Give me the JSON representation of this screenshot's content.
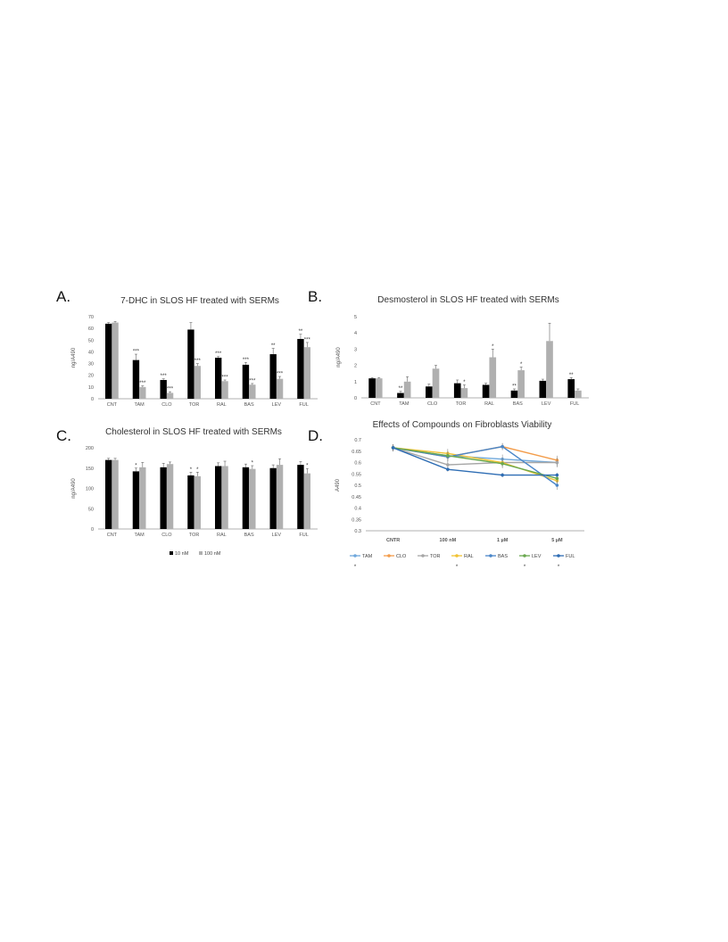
{
  "panels": [
    {
      "letter": "A."
    },
    {
      "letter": "B."
    },
    {
      "letter": "C."
    },
    {
      "letter": "D."
    }
  ],
  "chart_data": [
    {
      "type": "bar",
      "title": "7-DHC in SLOS HF treated with SERMs",
      "ylabel": "ng/A490",
      "ylim": [
        0,
        70
      ],
      "yticks": [
        0,
        10,
        20,
        30,
        40,
        50,
        60,
        70
      ],
      "categories": [
        "CNT",
        "TAM",
        "CLO",
        "TOR",
        "RAL",
        "BAS",
        "LEV",
        "FUL"
      ],
      "series": [
        {
          "name": "10 nM",
          "color": "#000000",
          "values": [
            64,
            33,
            16,
            59,
            35,
            29,
            38,
            51
          ],
          "errors": [
            1,
            5,
            1,
            6,
            1,
            2,
            5,
            4
          ],
          "stars": [
            "",
            "***",
            "***",
            "",
            "***",
            "***",
            "**",
            "**"
          ]
        },
        {
          "name": "100 nM",
          "color": "#b0b0b0",
          "values": [
            65,
            10,
            5,
            28,
            15,
            12,
            17,
            44
          ],
          "errors": [
            1,
            1,
            1,
            2,
            1,
            1,
            2,
            4
          ],
          "stars": [
            "",
            "***",
            "***",
            "***",
            "***",
            "***",
            "***",
            "***"
          ]
        }
      ]
    },
    {
      "type": "bar",
      "title": "Desmosterol in SLOS HF treated with SERMs",
      "ylabel": "ng/A490",
      "ylim": [
        0,
        5
      ],
      "yticks": [
        0,
        1,
        2,
        3,
        4,
        5
      ],
      "categories": [
        "CNT",
        "TAM",
        "CLO",
        "TOR",
        "RAL",
        "BAS",
        "LEV",
        "FUL"
      ],
      "series": [
        {
          "name": "10 nM",
          "color": "#000000",
          "values": [
            1.2,
            0.3,
            0.7,
            0.9,
            0.8,
            0.45,
            1.05,
            1.15
          ],
          "errors": [
            0.05,
            0.1,
            0.15,
            0.2,
            0.1,
            0.1,
            0.1,
            0.1
          ],
          "stars": [
            "",
            "**",
            "",
            "",
            "",
            "**",
            "",
            "**"
          ]
        },
        {
          "name": "100 nM",
          "color": "#b0b0b0",
          "values": [
            1.2,
            1.0,
            1.8,
            0.6,
            2.5,
            1.7,
            3.5,
            0.45
          ],
          "errors": [
            0.05,
            0.3,
            0.2,
            0.2,
            0.5,
            0.2,
            1.1,
            0.1
          ],
          "stars": [
            "",
            "",
            "",
            "*",
            "*",
            "*",
            "",
            ""
          ]
        }
      ]
    },
    {
      "type": "bar",
      "title": "Cholesterol in SLOS HF treated with SERMs",
      "ylabel": "ng/A490",
      "ylim": [
        0,
        200
      ],
      "yticks": [
        0,
        50,
        100,
        150,
        200
      ],
      "categories": [
        "CNT",
        "TAM",
        "CLO",
        "TOR",
        "RAL",
        "BAS",
        "LEV",
        "FUL"
      ],
      "legend_position": "bottom",
      "series": [
        {
          "name": "10 nM",
          "color": "#000000",
          "values": [
            170,
            142,
            152,
            132,
            155,
            152,
            150,
            158
          ],
          "errors": [
            4,
            8,
            10,
            8,
            8,
            8,
            8,
            8
          ],
          "stars": [
            "",
            "*",
            "",
            "*",
            "",
            "",
            "",
            ""
          ]
        },
        {
          "name": "100 nM",
          "color": "#b0b0b0",
          "values": [
            170,
            152,
            160,
            130,
            155,
            148,
            158,
            137
          ],
          "errors": [
            4,
            12,
            5,
            10,
            12,
            8,
            15,
            12
          ],
          "stars": [
            "",
            "",
            "",
            "*",
            "",
            "*",
            "",
            "*"
          ]
        }
      ]
    },
    {
      "type": "line",
      "title": "Effects of Compounds on Fibroblasts Viability",
      "ylabel": "A490",
      "ylim": [
        0.3,
        0.7
      ],
      "yticks": [
        0.3,
        0.35,
        0.4,
        0.45,
        0.5,
        0.55,
        0.6,
        0.65,
        0.7
      ],
      "ytick_labels": [
        "0.3",
        "0.35",
        "0.4",
        "0.45",
        "0.5",
        "0.55",
        "0.6",
        "0.65",
        "0.7"
      ],
      "categories": [
        "CNTR",
        "100 nM",
        "1 µM",
        "5 µM"
      ],
      "legend_position": "bottom",
      "series": [
        {
          "name": "TAM",
          "color": "#6fa8dc",
          "values": [
            0.665,
            0.63,
            0.615,
            0.6
          ],
          "errors": [
            0.015,
            0.02,
            0.02,
            0.02
          ],
          "starred": true
        },
        {
          "name": "CLO",
          "color": "#f39c4a",
          "values": [
            0.665,
            0.625,
            0.67,
            0.61
          ],
          "errors": [
            0.015,
            0.02,
            0.015,
            0.02
          ],
          "starred": false
        },
        {
          "name": "TOR",
          "color": "#a6a6a6",
          "values": [
            0.665,
            0.59,
            0.6,
            0.6
          ],
          "errors": [
            0.015,
            0.02,
            0.02,
            0.02
          ],
          "starred": false
        },
        {
          "name": "RAL",
          "color": "#f1c232",
          "values": [
            0.665,
            0.64,
            0.6,
            0.52
          ],
          "errors": [
            0.015,
            0.02,
            0.02,
            0.02
          ],
          "starred": true
        },
        {
          "name": "BAS",
          "color": "#4a86c8",
          "values": [
            0.665,
            0.625,
            0.67,
            0.5
          ],
          "errors": [
            0.015,
            0.02,
            0.015,
            0.02
          ],
          "starred": false
        },
        {
          "name": "LEV",
          "color": "#6aa84f",
          "values": [
            0.665,
            0.63,
            0.595,
            0.53
          ],
          "errors": [
            0.015,
            0.02,
            0.02,
            0.02
          ],
          "starred": true
        },
        {
          "name": "FUL",
          "color": "#2e6db4",
          "values": [
            0.665,
            0.57,
            0.545,
            0.545
          ],
          "errors": [
            0.015,
            0.01,
            0.01,
            0.01
          ],
          "starred": true
        }
      ]
    }
  ],
  "legend_star": "*"
}
